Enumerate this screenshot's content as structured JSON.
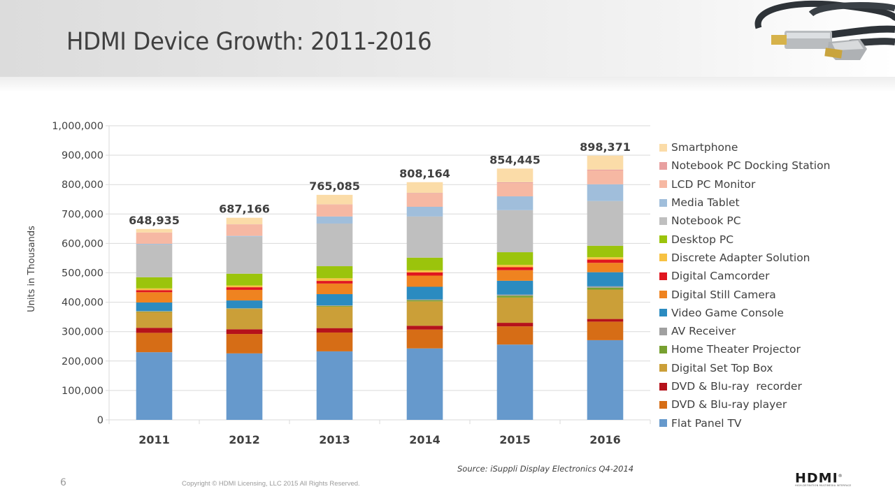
{
  "slide": {
    "title": "HDMI Device Growth: 2011-2016",
    "page_number": "6",
    "copyright": "Copyright © HDMI Licensing, LLC 2015  All Rights Reserved.",
    "source": "Source: iSuppli Display Electronics Q4-2014",
    "logo_text": "HDMI",
    "logo_registered": "®",
    "logo_subtitle": "HIGH-DEFINITION MULTIMEDIA INTERFACE",
    "header_image": "hdmi-cable-photo"
  },
  "chart_data": {
    "type": "bar",
    "stacked": true,
    "title": "HDMI Device Growth: 2011-2016",
    "xlabel": "",
    "ylabel": "Units in Thousands",
    "ylim": [
      0,
      1000000
    ],
    "yticks": [
      0,
      100000,
      200000,
      300000,
      400000,
      500000,
      600000,
      700000,
      800000,
      900000,
      1000000
    ],
    "ytick_labels": [
      "0",
      "100,000",
      "200,000",
      "300,000",
      "400,000",
      "500,000",
      "600,000",
      "700,000",
      "800,000",
      "900,000",
      "1,000,000"
    ],
    "grid": true,
    "legend_position": "right",
    "categories": [
      "2011",
      "2012",
      "2013",
      "2014",
      "2015",
      "2016"
    ],
    "totals": [
      648935,
      687166,
      765085,
      808164,
      854445,
      898371
    ],
    "total_labels": [
      "648,935",
      "687,166",
      "765,085",
      "808,164",
      "854,445",
      "898,371"
    ],
    "series": [
      {
        "name": "Flat Panel TV",
        "color": "#6699cc",
        "values": [
          230000,
          226000,
          233000,
          243000,
          256000,
          271000
        ]
      },
      {
        "name": "DVD & Blu-ray player",
        "color": "#d66d16",
        "values": [
          66000,
          66000,
          64000,
          64000,
          62000,
          63000
        ]
      },
      {
        "name": "DVD & Blu-ray  recorder",
        "color": "#b5121b",
        "values": [
          17000,
          16000,
          15000,
          13000,
          12000,
          9000
        ]
      },
      {
        "name": "Digital Set Top Box",
        "color": "#cb9f38",
        "values": [
          54000,
          69000,
          73000,
          83000,
          86000,
          100000
        ]
      },
      {
        "name": "Home Theater Projector",
        "color": "#77a030",
        "values": [
          1500,
          1500,
          2500,
          4000,
          6000,
          6500
        ]
      },
      {
        "name": "AV Receiver",
        "color": "#a0a0a0",
        "values": [
          1500,
          1500,
          2000,
          2500,
          4000,
          4500
        ]
      },
      {
        "name": "Video Game Console",
        "color": "#2b8bc0",
        "values": [
          29000,
          26000,
          38000,
          43000,
          47000,
          48000
        ]
      },
      {
        "name": "Digital Still Camera",
        "color": "#ef8320",
        "values": [
          35000,
          36000,
          36000,
          38000,
          36000,
          32000
        ]
      },
      {
        "name": "Digital Camcorder",
        "color": "#e0161f",
        "values": [
          7000,
          9000,
          9000,
          11000,
          10000,
          11000
        ]
      },
      {
        "name": "Discrete Adapter Solution",
        "color": "#f7c242",
        "values": [
          6000,
          6000,
          9000,
          7000,
          8000,
          8000
        ]
      },
      {
        "name": "Desktop PC",
        "color": "#9bc40c",
        "values": [
          38000,
          40000,
          41000,
          43000,
          43000,
          39000
        ]
      },
      {
        "name": "Notebook PC",
        "color": "#bfbfbf",
        "values": [
          111000,
          126000,
          145000,
          140000,
          143000,
          152000
        ]
      },
      {
        "name": "Media Tablet",
        "color": "#a0bedb",
        "values": [
          2500,
          2500,
          24000,
          33000,
          47000,
          57000
        ]
      },
      {
        "name": "LCD PC Monitor",
        "color": "#f6b8a3",
        "values": [
          38000,
          39000,
          40000,
          45000,
          45000,
          47000
        ]
      },
      {
        "name": "Notebook PC Docking Station",
        "color": "#e8a0a0",
        "values": [
          500,
          500,
          1000,
          2000,
          3000,
          3000
        ]
      },
      {
        "name": "Smartphone",
        "color": "#fbdca8",
        "values": [
          11935,
          22166,
          32585,
          36664,
          46445,
          47371
        ]
      }
    ],
    "legend_order": [
      "Smartphone",
      "Notebook PC Docking Station",
      "LCD PC Monitor",
      "Media Tablet",
      "Notebook PC",
      "Desktop PC",
      "Discrete Adapter Solution",
      "Digital Camcorder",
      "Digital Still Camera",
      "Video Game Console",
      "AV Receiver",
      "Home Theater Projector",
      "Digital Set Top Box",
      "DVD & Blu-ray  recorder",
      "DVD & Blu-ray player",
      "Flat Panel TV"
    ]
  }
}
